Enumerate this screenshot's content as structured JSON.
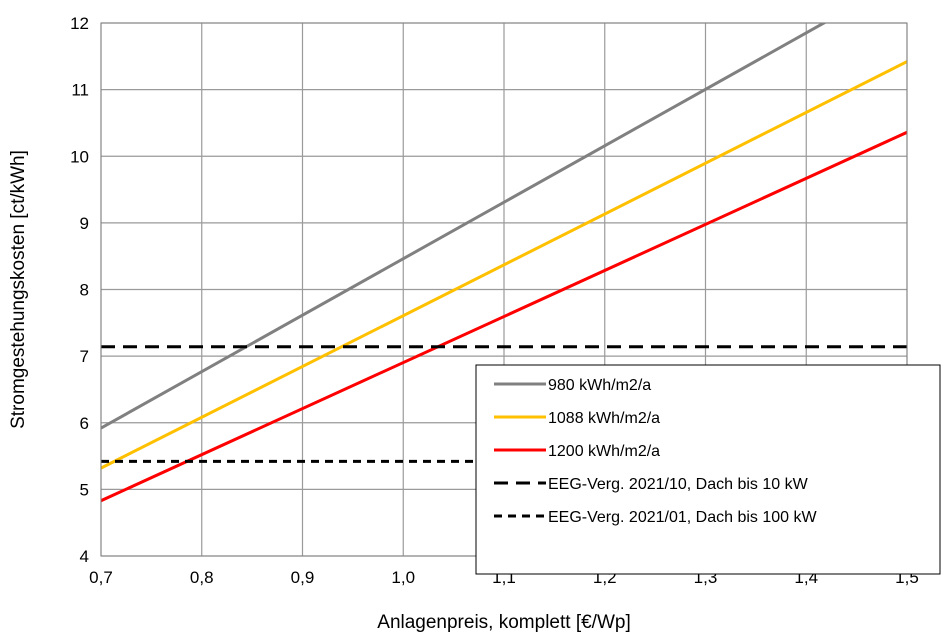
{
  "chart_data": {
    "type": "line",
    "title": "",
    "xlabel": "Anlagenpreis, komplett [€/Wp]",
    "ylabel": "Stromgestehungskosten [ct/kWh]",
    "xlim": [
      0.7,
      1.5
    ],
    "ylim": [
      4,
      12
    ],
    "xticks": [
      0.7,
      0.8,
      0.9,
      1.0,
      1.1,
      1.2,
      1.3,
      1.4,
      1.5
    ],
    "xtick_labels": [
      "0,7",
      "0,8",
      "0,9",
      "1,0",
      "1,1",
      "1,2",
      "1,3",
      "1,4",
      "1,5"
    ],
    "yticks": [
      4,
      5,
      6,
      7,
      8,
      9,
      10,
      11,
      12
    ],
    "ytick_labels": [
      "4",
      "5",
      "6",
      "7",
      "8",
      "9",
      "10",
      "11",
      "12"
    ],
    "grid": true,
    "legend_position": "bottom-right",
    "series": [
      {
        "name": "980 kWh/m2/a",
        "color": "#808080",
        "style": "solid",
        "x": [
          0.7,
          1.5
        ],
        "y": [
          5.92,
          12.7
        ]
      },
      {
        "name": "1088 kWh/m2/a",
        "color": "#FFC000",
        "style": "solid",
        "x": [
          0.7,
          1.5
        ],
        "y": [
          5.32,
          11.42
        ]
      },
      {
        "name": "1200 kWh/m2/a",
        "color": "#FF0000",
        "style": "solid",
        "x": [
          0.7,
          1.5
        ],
        "y": [
          4.83,
          10.36
        ]
      },
      {
        "name": "EEG-Verg. 2021/10, Dach bis 10 kW",
        "color": "#000000",
        "style": "dashed",
        "x": [
          0.7,
          1.5
        ],
        "y": [
          7.14,
          7.14
        ]
      },
      {
        "name": "EEG-Verg. 2021/01, Dach bis 100 kW",
        "color": "#000000",
        "style": "dashed-short",
        "x": [
          0.7,
          1.5
        ],
        "y": [
          5.42,
          5.42
        ]
      }
    ]
  }
}
